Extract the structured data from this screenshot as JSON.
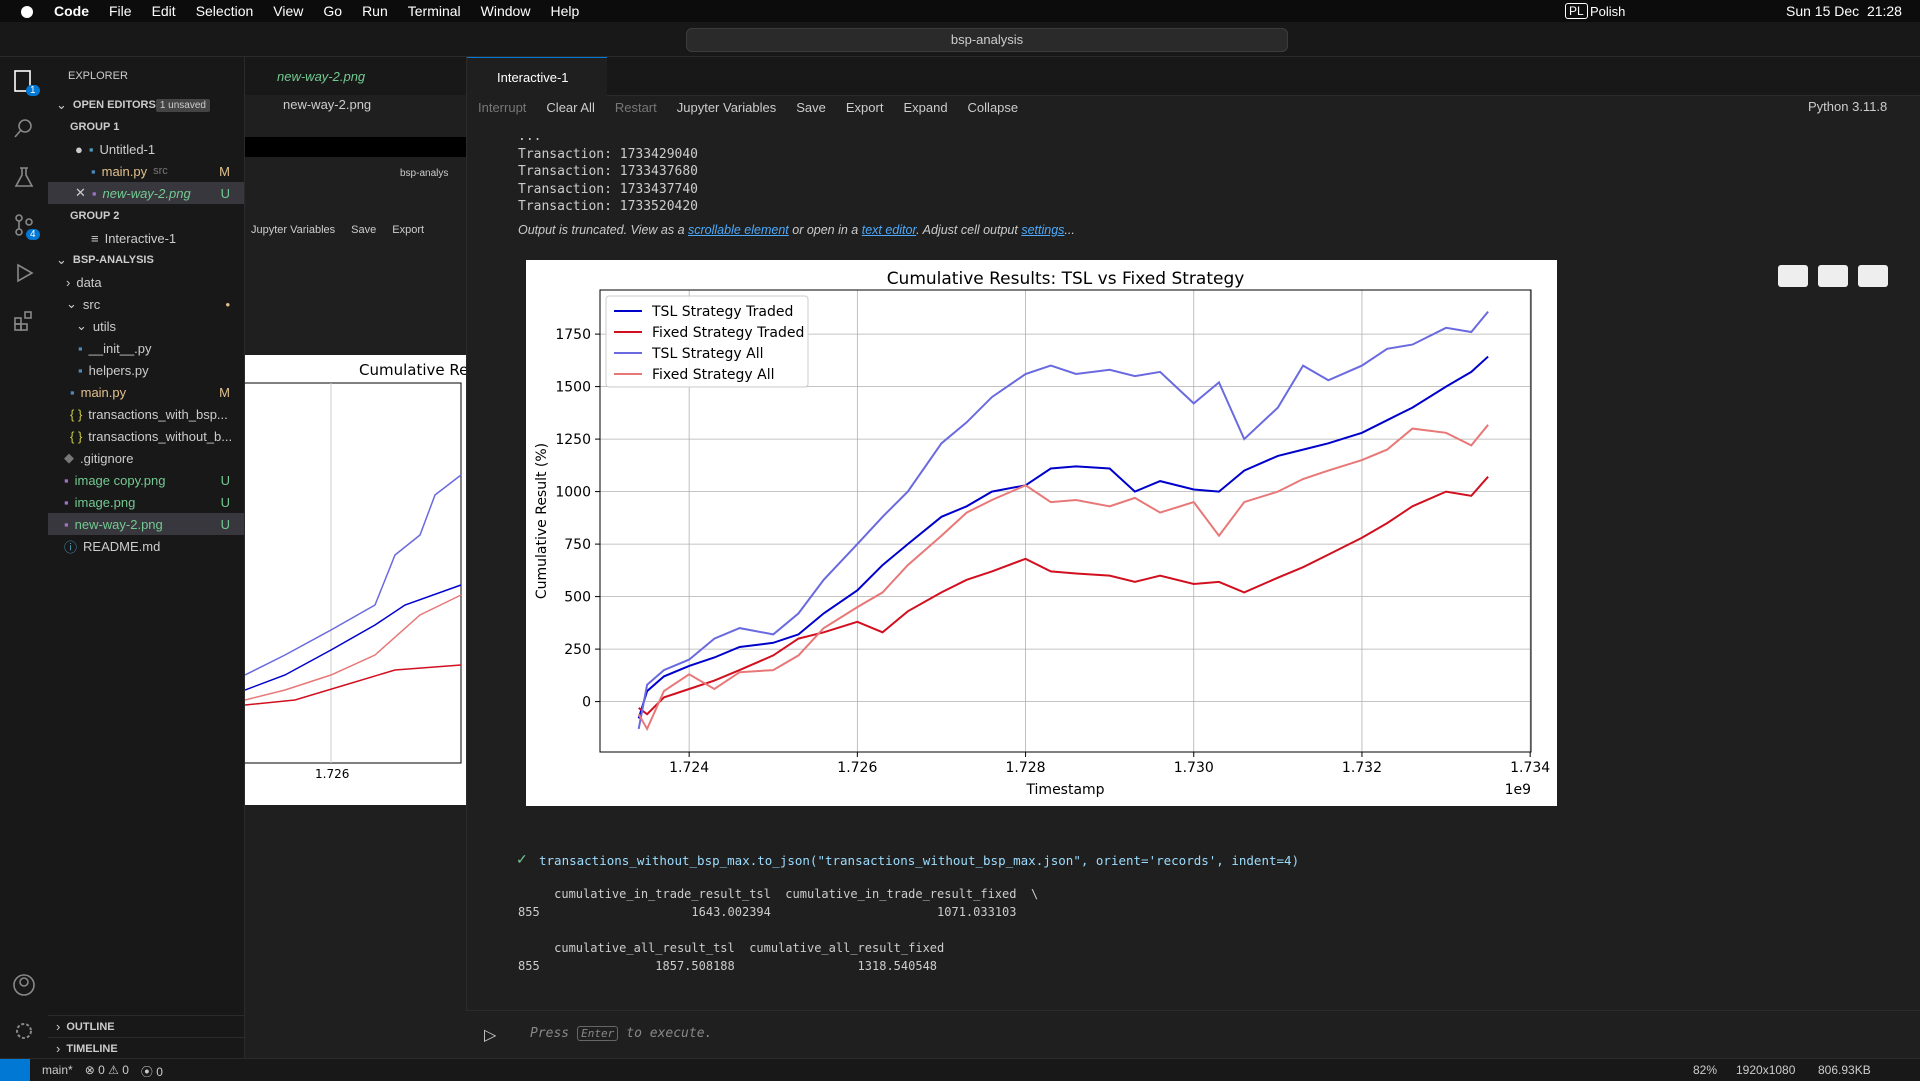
{
  "menu_bar": {
    "app": "Code",
    "menus": [
      "File",
      "Edit",
      "Selection",
      "View",
      "Go",
      "Run",
      "Terminal",
      "Window",
      "Help"
    ],
    "input_source": "PL",
    "language": "Polish",
    "clock": "Sun 15 Dec  21:28"
  },
  "title_bar": {
    "search": "bsp-analysis"
  },
  "activity_bar": {
    "explorer_badge": "1",
    "scm_badge": "4"
  },
  "sidebar": {
    "title": "EXPLORER",
    "open_editors": {
      "title": "OPEN EDITORS",
      "unsaved": "1 unsaved",
      "group1": "GROUP 1",
      "group2": "GROUP 2",
      "items": [
        {
          "label": "Untitled-1"
        },
        {
          "label": "main.py",
          "folder": "src",
          "status": "M"
        },
        {
          "label": "new-way-2.png",
          "status": "U"
        },
        {
          "label": "Interactive-1"
        }
      ]
    },
    "folder": {
      "title": "BSP-ANALYSIS",
      "items": [
        {
          "label": "data"
        },
        {
          "label": "src"
        },
        {
          "label": "utils"
        },
        {
          "label": "__init__.py"
        },
        {
          "label": "helpers.py"
        },
        {
          "label": "main.py",
          "status": "M"
        },
        {
          "label": "transactions_with_bsp..."
        },
        {
          "label": "transactions_without_b..."
        },
        {
          "label": ".gitignore"
        },
        {
          "label": "image copy.png",
          "status": "U"
        },
        {
          "label": "image.png",
          "status": "U"
        },
        {
          "label": "new-way-2.png",
          "status": "U"
        },
        {
          "label": "README.md"
        }
      ]
    },
    "outline": "OUTLINE",
    "timeline": "TIMELINE"
  },
  "image_editor": {
    "tab": "new-way-2.png",
    "breadcrumb": "new-way-2.png",
    "preview": {
      "search": "bsp-analys",
      "toolbar": [
        "Jupyter Variables",
        "Save",
        "Export"
      ],
      "title": "Cumulative Res",
      "tick": "1.726"
    }
  },
  "interactive": {
    "tab": "Interactive-1",
    "toolbar": [
      "Interrupt",
      "Clear All",
      "Restart",
      "Jupyter Variables",
      "Save",
      "Export",
      "Expand",
      "Collapse"
    ],
    "kernel": "Python 3.11.8",
    "output_lines": [
      "...",
      "Transaction: 1733429040",
      "Transaction: 1733437680",
      "Transaction: 1733437740",
      "Transaction: 1733520420"
    ],
    "truncated": {
      "text1": "Output is truncated. View as a ",
      "link1": "scrollable element",
      "text2": " or open in a ",
      "link2": "text editor",
      "text3": ". Adjust cell output ",
      "link3": "settings",
      "text4": "..."
    },
    "cell_code": "transactions_without_bsp_max.to_json(\"transactions_without_bsp_max.json\", orient='records', indent=4)",
    "cell_output": [
      "     cumulative_in_trade_result_tsl  cumulative_in_trade_result_fixed  \\",
      "855                     1643.002394                       1071.033103  ",
      "     cumulative_all_result_tsl  cumulative_all_result_fixed  ",
      "855                1857.508188                 1318.540548  "
    ],
    "input": {
      "press": "Press",
      "key": "Enter",
      "rest": "to execute."
    }
  },
  "chart": {
    "type": "line",
    "title": "Cumulative Results: TSL vs Fixed Strategy",
    "x_label": "Timestamp",
    "x_offset_label": "1e9",
    "y_label": "Cumulative Result (%)",
    "x": [
      1.7234,
      1.7235,
      1.7237,
      1.724,
      1.7243,
      1.7246,
      1.725,
      1.7253,
      1.7256,
      1.726,
      1.7263,
      1.7266,
      1.727,
      1.7273,
      1.7276,
      1.728,
      1.7283,
      1.7286,
      1.729,
      1.7293,
      1.7296,
      1.73,
      1.7303,
      1.7306,
      1.731,
      1.7313,
      1.7316,
      1.732,
      1.7323,
      1.7326,
      1.733,
      1.7333,
      1.7335
    ],
    "series": [
      {
        "name": "TSL Strategy Traded",
        "color": "#0000cc",
        "values": [
          -80,
          50,
          120,
          170,
          210,
          260,
          280,
          320,
          420,
          530,
          650,
          750,
          880,
          930,
          1000,
          1030,
          1110,
          1120,
          1110,
          1000,
          1050,
          1010,
          1000,
          1100,
          1170,
          1200,
          1230,
          1280,
          1340,
          1400,
          1500,
          1570,
          1643
        ]
      },
      {
        "name": "Fixed Strategy Traded",
        "color": "#d10f1f",
        "values": [
          -30,
          -60,
          20,
          60,
          100,
          150,
          220,
          300,
          330,
          380,
          330,
          430,
          520,
          580,
          620,
          680,
          620,
          610,
          600,
          570,
          600,
          560,
          570,
          520,
          590,
          640,
          700,
          780,
          850,
          930,
          1000,
          980,
          1071
        ]
      },
      {
        "name": "TSL Strategy All",
        "color": "#6a6ae0",
        "values": [
          -130,
          80,
          150,
          200,
          300,
          350,
          320,
          420,
          580,
          750,
          880,
          1000,
          1230,
          1330,
          1450,
          1560,
          1600,
          1560,
          1580,
          1550,
          1570,
          1420,
          1520,
          1250,
          1400,
          1600,
          1530,
          1600,
          1680,
          1700,
          1780,
          1760,
          1857
        ]
      },
      {
        "name": "Fixed Strategy All",
        "color": "#e87878",
        "values": [
          -60,
          -130,
          50,
          130,
          60,
          140,
          150,
          220,
          350,
          450,
          520,
          650,
          790,
          900,
          960,
          1030,
          950,
          960,
          930,
          970,
          900,
          950,
          790,
          950,
          1000,
          1060,
          1100,
          1150,
          1200,
          1300,
          1280,
          1220,
          1318
        ]
      }
    ],
    "xlim": [
      1.72294,
      1.73401
    ],
    "xticks": [
      1.724,
      1.726,
      1.728,
      {
        "value": 1.73,
        "label": "1.730"
      },
      1.732,
      1.734
    ],
    "ylim": [
      -240,
      1960
    ],
    "yticks": [
      0,
      250,
      500,
      750,
      1000,
      1250,
      1500,
      1750
    ],
    "grid": true,
    "legend": "upper left"
  },
  "status_bar": {
    "branch": "main*",
    "errors": "0",
    "warnings": "0",
    "ports": "0",
    "zoom": "82%",
    "dimensions": "1920x1080",
    "size": "806.93KB"
  }
}
